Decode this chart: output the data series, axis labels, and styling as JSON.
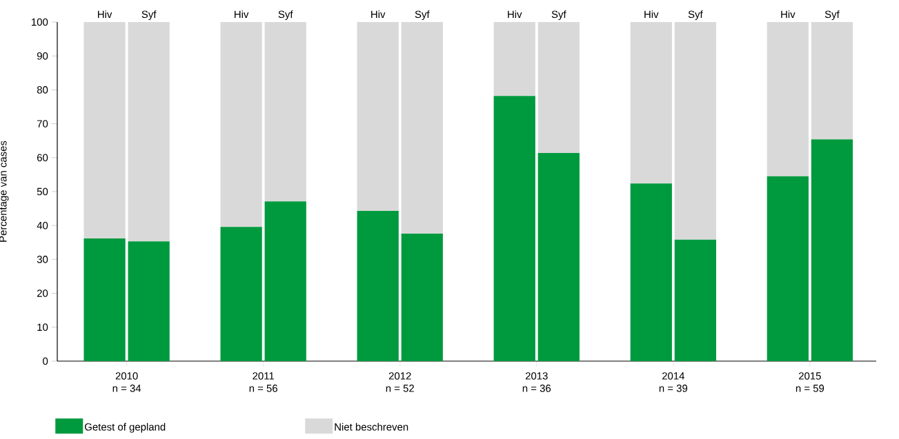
{
  "chart_data": {
    "type": "bar",
    "stacked": true,
    "ylabel": "Percentage van cases",
    "categories": [
      "Hiv",
      "Syf",
      "Hiv",
      "Syf",
      "Hiv",
      "Syf",
      "Hiv",
      "Syf",
      "Hiv",
      "Syf",
      "Hiv",
      "Syf"
    ],
    "series": [
      {
        "name": "Getest of gepland",
        "color": "#009a3e",
        "values": [
          36.2,
          35.3,
          39.6,
          47.1,
          44.3,
          37.6,
          78.2,
          61.4,
          52.4,
          35.8,
          54.5,
          65.4
        ]
      },
      {
        "name": "Niet beschreven",
        "color": "#d9d9d9",
        "values": [
          63.8,
          64.7,
          60.4,
          52.9,
          55.7,
          62.4,
          21.8,
          38.6,
          47.6,
          64.2,
          45.5,
          34.6
        ]
      }
    ],
    "ylim": [
      0,
      100
    ],
    "yticks": [
      0,
      10,
      20,
      30,
      40,
      50,
      60,
      70,
      80,
      90,
      100
    ],
    "grid": false,
    "legend": "bottom",
    "annotations": [
      "2010",
      "n = 34",
      "2011",
      "n = 56",
      "2012",
      "n = 52",
      "2013",
      "n = 36",
      "2014",
      "n = 39",
      "2015",
      "n = 59"
    ]
  }
}
